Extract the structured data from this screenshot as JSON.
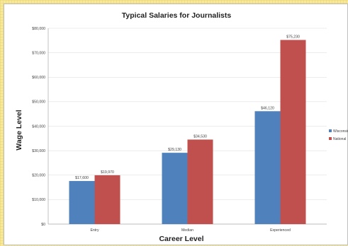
{
  "chart_data": {
    "type": "bar",
    "title": "Typical Salaries for Journalists",
    "xlabel": "Career Level",
    "ylabel": "Wage Level",
    "categories": [
      "Entry",
      "Median",
      "Experienced"
    ],
    "series": [
      {
        "name": "Wisconsin",
        "values": [
          17600,
          29130,
          46120
        ],
        "color": "#4f81bd"
      },
      {
        "name": "National",
        "values": [
          19970,
          34530,
          75230
        ],
        "color": "#c0504d"
      }
    ],
    "data_labels": [
      [
        "$17,600",
        "$29,130",
        "$46,120"
      ],
      [
        "$19,970",
        "$34,530",
        "$75,230"
      ]
    ],
    "ylim": [
      0,
      80000
    ],
    "yticks": [
      0,
      10000,
      20000,
      30000,
      40000,
      50000,
      60000,
      70000,
      80000
    ],
    "ytick_labels": [
      "$0",
      "$10,000",
      "$20,000",
      "$30,000",
      "$40,000",
      "$50,000",
      "$60,000",
      "$70,000",
      "$80,000"
    ],
    "grid": true,
    "legend_position": "right"
  }
}
